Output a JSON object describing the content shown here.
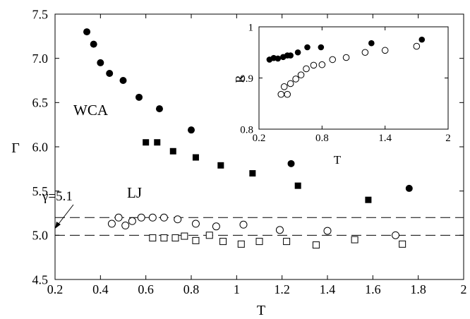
{
  "chart_data": [
    {
      "type": "scatter",
      "xlabel": "T",
      "ylabel": "Γ",
      "xlim": [
        0.2,
        2.0
      ],
      "ylim": [
        4.5,
        7.5
      ],
      "xticks": [
        0.2,
        0.4,
        0.6,
        0.8,
        1.0,
        1.2,
        1.4,
        1.6,
        1.8,
        2.0
      ],
      "xtick_labels": [
        "0.2",
        "0.4",
        "0.6",
        "0.8",
        "1",
        "1.2",
        "1.4",
        "1.6",
        "1.8",
        "2"
      ],
      "yticks": [
        4.5,
        5.0,
        5.5,
        6.0,
        6.5,
        7.0,
        7.5
      ],
      "ytick_labels": [
        "4.5",
        "5.0",
        "5.5",
        "6.0",
        "6.5",
        "7.0",
        "7.5"
      ],
      "grid": false,
      "annotations": [
        {
          "text": "WCA",
          "x": 0.34,
          "y": 6.5
        },
        {
          "text": "LJ",
          "x": 0.6,
          "y": 5.43
        },
        {
          "text": "γ=5.1",
          "x": 0.22,
          "y": 5.37
        }
      ],
      "reference_lines": [
        {
          "y": 5.0,
          "style": "dashed"
        },
        {
          "y": 5.2,
          "style": "dashed"
        }
      ],
      "series": [
        {
          "marker": "filled-circle",
          "x": [
            0.34,
            0.37,
            0.4,
            0.44,
            0.5,
            0.57,
            0.66,
            0.8,
            1.24,
            1.76
          ],
          "y": [
            7.3,
            7.16,
            6.95,
            6.83,
            6.75,
            6.56,
            6.43,
            6.19,
            5.81,
            5.53
          ]
        },
        {
          "marker": "filled-square",
          "x": [
            0.6,
            0.65,
            0.72,
            0.82,
            0.93,
            1.07,
            1.27,
            1.58
          ],
          "y": [
            6.05,
            6.05,
            5.95,
            5.88,
            5.79,
            5.7,
            5.56,
            5.4
          ]
        },
        {
          "marker": "open-circle",
          "x": [
            0.45,
            0.48,
            0.51,
            0.54,
            0.58,
            0.63,
            0.68,
            0.74,
            0.82,
            0.91,
            1.03,
            1.19,
            1.4,
            1.7
          ],
          "y": [
            5.13,
            5.2,
            5.11,
            5.16,
            5.2,
            5.2,
            5.2,
            5.18,
            5.13,
            5.1,
            5.12,
            5.06,
            5.05,
            5.0
          ]
        },
        {
          "marker": "open-square",
          "x": [
            0.63,
            0.68,
            0.73,
            0.77,
            0.82,
            0.88,
            0.94,
            1.02,
            1.1,
            1.22,
            1.35,
            1.52,
            1.73
          ],
          "y": [
            4.97,
            4.97,
            4.97,
            4.99,
            4.94,
            5.0,
            4.93,
            4.9,
            4.93,
            4.93,
            4.89,
            4.95,
            4.9
          ]
        }
      ]
    },
    {
      "type": "scatter",
      "xlabel": "T",
      "ylabel": "R",
      "xlim": [
        0.2,
        2.0
      ],
      "ylim": [
        0.8,
        1.0
      ],
      "xticks": [
        0.2,
        0.8,
        1.4,
        2.0
      ],
      "xtick_labels": [
        "0.2",
        "0.8",
        "1.4",
        "2"
      ],
      "yticks": [
        0.8,
        0.9,
        1.0
      ],
      "ytick_labels": [
        "0.8",
        "0.9",
        "1"
      ],
      "grid": false,
      "series": [
        {
          "marker": "filled-circle",
          "x": [
            0.3,
            0.34,
            0.38,
            0.43,
            0.47,
            0.5,
            0.57,
            0.66,
            0.79,
            1.27,
            1.75
          ],
          "y": [
            0.936,
            0.939,
            0.938,
            0.941,
            0.944,
            0.944,
            0.95,
            0.96,
            0.96,
            0.968,
            0.975
          ]
        },
        {
          "marker": "open-circle",
          "x": [
            0.41,
            0.44,
            0.47,
            0.5,
            0.55,
            0.6,
            0.65,
            0.72,
            0.8,
            0.9,
            1.03,
            1.21,
            1.4,
            1.7
          ],
          "y": [
            0.868,
            0.883,
            0.868,
            0.889,
            0.898,
            0.906,
            0.918,
            0.925,
            0.926,
            0.936,
            0.94,
            0.95,
            0.954,
            0.962
          ]
        }
      ]
    }
  ]
}
